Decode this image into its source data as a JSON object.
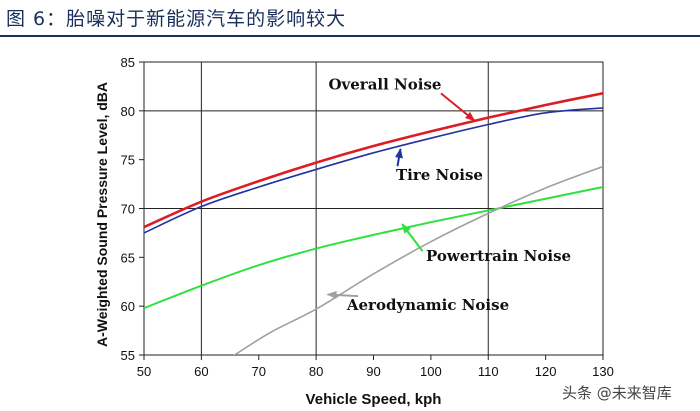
{
  "figure_title": "图 6：胎噪对于新能源汽车的影响较大",
  "watermark": "头条 @未来智库",
  "colors": {
    "title": "#1a2f5c",
    "overall": "#dd1c24",
    "tire": "#2233a0",
    "powertrain": "#2ee13c",
    "aero": "#a0a0a0",
    "grid": "#222222"
  },
  "chart_data": {
    "type": "line",
    "title": "",
    "xlabel": "Vehicle Speed, kph",
    "ylabel": "A-Weighted Sound Pressure Level, dBA",
    "xlim": [
      50,
      130
    ],
    "ylim": [
      55,
      85
    ],
    "xticks": [
      50,
      60,
      70,
      80,
      90,
      100,
      110,
      120,
      130
    ],
    "yticks": [
      55,
      60,
      65,
      70,
      75,
      80,
      85
    ],
    "grid_x": [
      60,
      80,
      110
    ],
    "grid_y": [
      70,
      80
    ],
    "x": [
      50,
      60,
      70,
      80,
      90,
      100,
      110,
      120,
      130
    ],
    "series": [
      {
        "name": "Overall Noise",
        "key": "overall",
        "values": [
          68.1,
          70.7,
          72.8,
          74.7,
          76.4,
          77.9,
          79.3,
          80.6,
          81.8
        ],
        "annotation": {
          "label": "Overall Noise",
          "text_at": [
            92,
            82.2
          ],
          "arrow_to": [
            107.6,
            79.0
          ]
        }
      },
      {
        "name": "Tire Noise",
        "key": "tire",
        "values": [
          67.5,
          70.2,
          72.2,
          74.0,
          75.7,
          77.2,
          78.6,
          79.8,
          80.3
        ],
        "annotation": {
          "label": "Tire Noise",
          "text_at": [
            101.5,
            72.9
          ],
          "arrow_to": [
            94.7,
            76.1
          ]
        }
      },
      {
        "name": "Powertrain Noise",
        "key": "powertrain",
        "values": [
          59.8,
          62.1,
          64.2,
          65.9,
          67.3,
          68.6,
          69.8,
          71.0,
          72.2
        ],
        "annotation": {
          "label": "Powertrain Noise",
          "text_at": [
            111.8,
            64.6
          ],
          "arrow_to": [
            95.0,
            68.4
          ]
        }
      },
      {
        "name": "Aerodynamic Noise",
        "key": "aero",
        "values": [
          null,
          null,
          null,
          59.7,
          63.3,
          66.6,
          69.5,
          72.1,
          74.3
        ],
        "annotation": {
          "label": "Aerodynamic Noise",
          "text_at": [
            99.5,
            59.6
          ],
          "arrow_to": [
            82.0,
            61.2
          ]
        }
      }
    ]
  }
}
